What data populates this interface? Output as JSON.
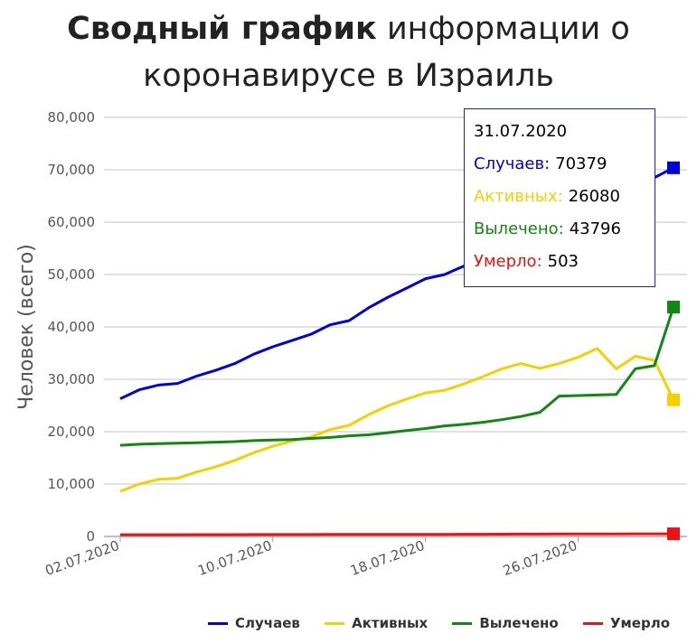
{
  "title": {
    "bold": "Сводный график",
    "rest": "информации о коронавирусе в Израиль"
  },
  "chart_data": {
    "type": "line",
    "title": "Сводный график информации о коронавирусе в Израиль",
    "ylabel": "Человек (всего)",
    "xlabel": "",
    "ylim": [
      0,
      80000
    ],
    "y_ticks": [
      "0",
      "10,000",
      "20,000",
      "30,000",
      "40,000",
      "50,000",
      "60,000",
      "70,000",
      "80,000"
    ],
    "x_tick_labels": [
      "02.07.2020",
      "10.07.2020",
      "18.07.2020",
      "26.07.2020"
    ],
    "x": [
      "02.07.2020",
      "03.07.2020",
      "04.07.2020",
      "05.07.2020",
      "06.07.2020",
      "07.07.2020",
      "08.07.2020",
      "09.07.2020",
      "10.07.2020",
      "11.07.2020",
      "12.07.2020",
      "13.07.2020",
      "14.07.2020",
      "15.07.2020",
      "16.07.2020",
      "17.07.2020",
      "18.07.2020",
      "19.07.2020",
      "20.07.2020",
      "21.07.2020",
      "22.07.2020",
      "23.07.2020",
      "24.07.2020",
      "25.07.2020",
      "26.07.2020",
      "27.07.2020",
      "28.07.2020",
      "29.07.2020",
      "30.07.2020",
      "31.07.2020"
    ],
    "grid": true,
    "legend_position": "bottom",
    "series": [
      {
        "name": "Случаев",
        "color": "#0000dd",
        "values": [
          26300,
          28000,
          28900,
          29200,
          30600,
          31700,
          33000,
          34800,
          36200,
          37400,
          38600,
          40400,
          41200,
          43600,
          45600,
          47400,
          49200,
          50000,
          51600,
          53100,
          55000,
          56800,
          58500,
          60000,
          61300,
          62800,
          65000,
          66500,
          68500,
          70379
        ]
      },
      {
        "name": "Активных",
        "color": "#f5d000",
        "values": [
          8600,
          10000,
          10900,
          11100,
          12300,
          13300,
          14500,
          16000,
          17200,
          18200,
          19000,
          20400,
          21200,
          23200,
          24900,
          26200,
          27400,
          27900,
          29100,
          30500,
          32000,
          33000,
          32100,
          33000,
          34200,
          35900,
          32000,
          34400,
          33600,
          26080
        ]
      },
      {
        "name": "Вылечено",
        "color": "#118811",
        "values": [
          17400,
          17600,
          17700,
          17800,
          17900,
          18000,
          18100,
          18300,
          18400,
          18500,
          18700,
          18900,
          19200,
          19400,
          19800,
          20200,
          20600,
          21100,
          21400,
          21800,
          22300,
          22900,
          23700,
          26800,
          26900,
          27000,
          27100,
          32000,
          32600,
          43796
        ]
      },
      {
        "name": "Умерло",
        "color": "#ee1111",
        "values": [
          320,
          325,
          330,
          335,
          340,
          345,
          350,
          355,
          360,
          365,
          370,
          375,
          380,
          385,
          390,
          395,
          400,
          405,
          410,
          420,
          430,
          440,
          450,
          460,
          470,
          480,
          490,
          495,
          500,
          503
        ]
      }
    ]
  },
  "tooltip": {
    "date": "31.07.2020",
    "rows": [
      {
        "label": "Случаев:",
        "value": "70379",
        "color": "#0000dd"
      },
      {
        "label": "Активных:",
        "value": "26080",
        "color": "#f5d000"
      },
      {
        "label": "Вылечено:",
        "value": "43796",
        "color": "#118811"
      },
      {
        "label": "Умерло:",
        "value": "503",
        "color": "#ee1111"
      }
    ]
  }
}
